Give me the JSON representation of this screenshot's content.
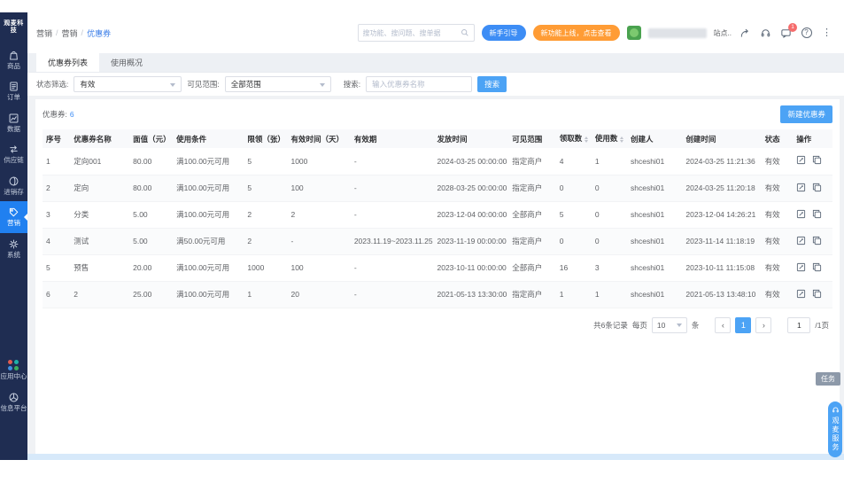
{
  "brand": {
    "name": "观麦科技"
  },
  "sidebar": {
    "items": [
      {
        "label": "商品",
        "icon": "bag-icon"
      },
      {
        "label": "订单",
        "icon": "order-icon"
      },
      {
        "label": "数据",
        "icon": "chart-icon"
      },
      {
        "label": "供应链",
        "icon": "supply-icon"
      },
      {
        "label": "进销存",
        "icon": "inventory-icon"
      },
      {
        "label": "营销",
        "icon": "tag-icon",
        "active": true
      },
      {
        "label": "系统",
        "icon": "gear-icon"
      }
    ],
    "bottom_items": [
      {
        "label": "应用中心",
        "icon": "apps-icon"
      },
      {
        "label": "信息平台",
        "icon": "platform-icon"
      }
    ]
  },
  "header": {
    "breadcrumb": [
      "营销",
      "营销",
      "优惠券"
    ],
    "search_placeholder": "搜功能、搜问题、搜单据",
    "guide_button": "新手引导",
    "promo_button": "新功能上线，点击查看",
    "user_suffix": "站点..",
    "chat_badge": "1"
  },
  "tabs": [
    {
      "label": "优惠券列表",
      "active": true
    },
    {
      "label": "使用概况",
      "active": false
    }
  ],
  "filters": {
    "status_label": "状态筛选:",
    "status_value": "有效",
    "scope_label": "可见范围:",
    "scope_value": "全部范围",
    "search_label": "搜索:",
    "search_placeholder": "输入优惠券名称",
    "search_button": "搜索"
  },
  "toolbar": {
    "count_label": "优惠券:",
    "count": "6",
    "create_button": "新建优惠券"
  },
  "table": {
    "columns": [
      {
        "label": "序号"
      },
      {
        "label": "优惠券名称"
      },
      {
        "label": "面值（元）"
      },
      {
        "label": "使用条件"
      },
      {
        "label": "限领（张）"
      },
      {
        "label": "有效时间（天）"
      },
      {
        "label": "有效期"
      },
      {
        "label": "发放时间"
      },
      {
        "label": "可见范围"
      },
      {
        "label": "领取数",
        "sortable": true
      },
      {
        "label": "使用数",
        "sortable": true
      },
      {
        "label": "创建人"
      },
      {
        "label": "创建时间"
      },
      {
        "label": "状态"
      },
      {
        "label": "操作"
      }
    ],
    "rows": [
      [
        "1",
        "定向001",
        "80.00",
        "满100.00元可用",
        "5",
        "1000",
        "-",
        "2024-03-25 00:00:00",
        "指定商户",
        "4",
        "1",
        "shceshi01",
        "2024-03-25 11:21:36",
        "有效"
      ],
      [
        "2",
        "定向",
        "80.00",
        "满100.00元可用",
        "5",
        "100",
        "-",
        "2028-03-25 00:00:00",
        "指定商户",
        "0",
        "0",
        "shceshi01",
        "2024-03-25 11:20:18",
        "有效"
      ],
      [
        "3",
        "分类",
        "5.00",
        "满100.00元可用",
        "2",
        "2",
        "-",
        "2023-12-04 00:00:00",
        "全部商户",
        "5",
        "0",
        "shceshi01",
        "2023-12-04 14:26:21",
        "有效"
      ],
      [
        "4",
        "测试",
        "5.00",
        "满50.00元可用",
        "2",
        "-",
        "2023.11.19~2023.11.25",
        "2023-11-19 00:00:00",
        "指定商户",
        "0",
        "0",
        "shceshi01",
        "2023-11-14 11:18:19",
        "有效"
      ],
      [
        "5",
        "预售",
        "20.00",
        "满100.00元可用",
        "1000",
        "100",
        "-",
        "2023-10-11 00:00:00",
        "全部商户",
        "16",
        "3",
        "shceshi01",
        "2023-10-11 11:15:08",
        "有效"
      ],
      [
        "6",
        "2",
        "25.00",
        "满100.00元可用",
        "1",
        "20",
        "-",
        "2021-05-13 13:30:00",
        "指定商户",
        "1",
        "1",
        "shceshi01",
        "2021-05-13 13:48:10",
        "有效"
      ]
    ]
  },
  "pagination": {
    "total_text": "共6条记录",
    "per_page_label": "每页",
    "per_page_value": "10",
    "unit_label": "条",
    "prev": "‹",
    "page": "1",
    "next": "›",
    "jump_value": "1",
    "pages_suffix": "/1页"
  },
  "floating": {
    "task_label": "任务",
    "service_label": "观麦服务"
  }
}
